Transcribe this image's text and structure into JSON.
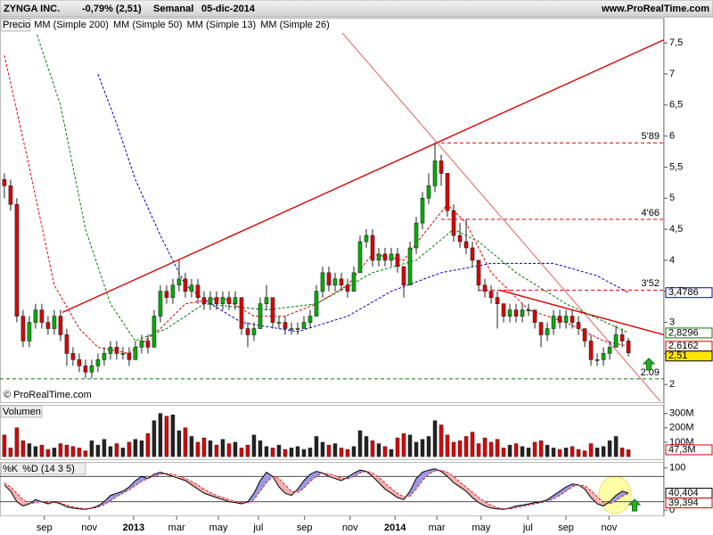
{
  "chart_data": [
    {
      "type": "candlestick",
      "title": "ZYNGA INC.",
      "change": "-0,79% (2,51)",
      "period": "Semanal",
      "date": "05-dic-2014",
      "source": "www.ProRealTime.com",
      "copyright": "© ProRealTime.com",
      "panel_label": "Precio",
      "up_color": "#00b000",
      "down_color": "#e00000",
      "xlim": [
        -0.7,
        105.7
      ],
      "ylim": [
        1.73,
        7.66
      ],
      "yticks": [
        {
          "value": 7.5,
          "label": "7,5"
        },
        7,
        {
          "value": 6.5,
          "label": "6,5"
        },
        6,
        {
          "value": 5.5,
          "label": "5,5"
        },
        5,
        {
          "value": 4.5,
          "label": "4,5"
        },
        4,
        {
          "value": 3.5,
          "label": "3,5"
        },
        3,
        {
          "value": 2.5,
          "label": "2,5"
        },
        2
      ],
      "candles": [
        [
          5.3,
          5.4,
          5.0,
          5.2
        ],
        [
          5.2,
          5.3,
          4.8,
          4.9
        ],
        [
          4.9,
          5.0,
          3.0,
          3.1
        ],
        [
          3.1,
          3.2,
          2.6,
          2.7
        ],
        [
          2.7,
          3.1,
          2.6,
          3.0
        ],
        [
          3.0,
          3.3,
          2.9,
          3.2
        ],
        [
          3.2,
          3.3,
          2.9,
          3.0
        ],
        [
          3.0,
          3.1,
          2.8,
          2.9
        ],
        [
          2.9,
          3.2,
          2.8,
          3.1
        ],
        [
          3.1,
          3.2,
          2.7,
          2.8
        ],
        [
          2.8,
          2.9,
          2.3,
          2.5
        ],
        [
          2.5,
          2.6,
          2.3,
          2.4
        ],
        [
          2.4,
          2.5,
          2.2,
          2.3
        ],
        [
          2.3,
          2.4,
          2.1,
          2.2
        ],
        [
          2.2,
          2.4,
          2.1,
          2.3
        ],
        [
          2.3,
          2.5,
          2.2,
          2.4
        ],
        [
          2.4,
          2.6,
          2.3,
          2.5
        ],
        [
          2.5,
          2.7,
          2.4,
          2.6
        ],
        [
          2.6,
          2.7,
          2.4,
          2.5
        ],
        [
          2.5,
          2.6,
          2.4,
          2.5
        ],
        [
          2.5,
          2.6,
          2.3,
          2.4
        ],
        [
          2.4,
          2.7,
          2.4,
          2.6
        ],
        [
          2.6,
          2.8,
          2.5,
          2.7
        ],
        [
          2.7,
          2.8,
          2.5,
          2.6
        ],
        [
          2.6,
          3.2,
          2.6,
          3.1
        ],
        [
          3.1,
          3.6,
          3.0,
          3.5
        ],
        [
          3.5,
          3.6,
          3.3,
          3.4
        ],
        [
          3.4,
          3.7,
          3.3,
          3.6
        ],
        [
          3.6,
          4.0,
          3.5,
          3.7
        ],
        [
          3.7,
          3.8,
          3.4,
          3.5
        ],
        [
          3.5,
          3.7,
          3.4,
          3.6
        ],
        [
          3.6,
          3.7,
          3.3,
          3.4
        ],
        [
          3.4,
          3.5,
          3.2,
          3.3
        ],
        [
          3.3,
          3.5,
          3.2,
          3.4
        ],
        [
          3.4,
          3.5,
          3.2,
          3.3
        ],
        [
          3.3,
          3.5,
          3.2,
          3.4
        ],
        [
          3.4,
          3.5,
          3.2,
          3.3
        ],
        [
          3.3,
          3.5,
          3.2,
          3.4
        ],
        [
          3.4,
          3.4,
          2.8,
          2.9
        ],
        [
          2.9,
          3.0,
          2.6,
          2.8
        ],
        [
          2.8,
          3.0,
          2.7,
          2.9
        ],
        [
          2.9,
          3.4,
          2.9,
          3.3
        ],
        [
          3.3,
          3.6,
          3.2,
          3.4
        ],
        [
          3.4,
          3.4,
          2.9,
          3.0
        ],
        [
          3.0,
          3.1,
          2.9,
          3.0
        ],
        [
          3.0,
          3.1,
          2.8,
          2.9
        ],
        [
          2.9,
          3.0,
          2.8,
          2.9
        ],
        [
          2.9,
          3.0,
          2.8,
          2.9
        ],
        [
          2.9,
          3.1,
          2.9,
          3.0
        ],
        [
          3.0,
          3.2,
          2.9,
          3.1
        ],
        [
          3.1,
          3.6,
          3.1,
          3.5
        ],
        [
          3.5,
          3.9,
          3.4,
          3.8
        ],
        [
          3.8,
          3.9,
          3.5,
          3.6
        ],
        [
          3.6,
          3.8,
          3.5,
          3.7
        ],
        [
          3.7,
          3.8,
          3.5,
          3.6
        ],
        [
          3.6,
          3.7,
          3.4,
          3.5
        ],
        [
          3.5,
          3.9,
          3.5,
          3.8
        ],
        [
          3.8,
          4.4,
          3.8,
          4.3
        ],
        [
          4.3,
          4.5,
          4.2,
          4.4
        ],
        [
          4.4,
          4.5,
          3.9,
          4.0
        ],
        [
          4.0,
          4.2,
          3.9,
          4.1
        ],
        [
          4.1,
          4.2,
          3.9,
          4.0
        ],
        [
          4.0,
          4.2,
          3.9,
          4.1
        ],
        [
          4.1,
          4.2,
          3.8,
          3.9
        ],
        [
          3.9,
          3.9,
          3.4,
          3.6
        ],
        [
          3.6,
          4.3,
          3.6,
          4.2
        ],
        [
          4.2,
          4.7,
          4.1,
          4.6
        ],
        [
          4.6,
          5.1,
          4.5,
          5.0
        ],
        [
          5.0,
          5.4,
          4.9,
          5.2
        ],
        [
          5.2,
          5.89,
          5.1,
          5.6
        ],
        [
          5.6,
          5.7,
          5.2,
          5.4
        ],
        [
          5.4,
          5.4,
          4.7,
          4.8
        ],
        [
          4.8,
          4.9,
          4.3,
          4.4
        ],
        [
          4.4,
          4.6,
          4.2,
          4.3
        ],
        [
          4.3,
          4.66,
          4.1,
          4.2
        ],
        [
          4.2,
          4.3,
          3.9,
          4.0
        ],
        [
          4.0,
          4.0,
          3.5,
          3.6
        ],
        [
          3.6,
          3.7,
          3.4,
          3.5
        ],
        [
          3.5,
          3.6,
          3.3,
          3.4
        ],
        [
          3.4,
          3.5,
          2.9,
          3.3
        ],
        [
          3.3,
          3.3,
          3.0,
          3.1
        ],
        [
          3.1,
          3.3,
          3.0,
          3.2
        ],
        [
          3.2,
          3.3,
          3.0,
          3.1
        ],
        [
          3.1,
          3.3,
          3.0,
          3.2
        ],
        [
          3.2,
          3.3,
          3.1,
          3.2
        ],
        [
          3.2,
          3.2,
          2.9,
          3.0
        ],
        [
          3.0,
          3.0,
          2.6,
          2.8
        ],
        [
          2.8,
          3.0,
          2.7,
          2.9
        ],
        [
          2.9,
          3.2,
          2.8,
          3.1
        ],
        [
          3.1,
          3.2,
          2.9,
          3.0
        ],
        [
          3.0,
          3.2,
          2.9,
          3.1
        ],
        [
          3.1,
          3.2,
          2.9,
          3.0
        ],
        [
          3.0,
          3.1,
          2.8,
          2.9
        ],
        [
          2.9,
          2.9,
          2.6,
          2.7
        ],
        [
          2.7,
          2.8,
          2.3,
          2.4
        ],
        [
          2.4,
          2.5,
          2.3,
          2.4
        ],
        [
          2.4,
          2.6,
          2.3,
          2.5
        ],
        [
          2.5,
          2.7,
          2.4,
          2.6
        ],
        [
          2.6,
          2.95,
          2.6,
          2.8
        ],
        [
          2.8,
          2.9,
          2.6,
          2.7
        ],
        [
          2.7,
          2.75,
          2.45,
          2.51
        ]
      ],
      "close_label": "2,51",
      "series": [
        {
          "name": "MM (Simple 200)",
          "color": "#000000",
          "x": [],
          "values": []
        },
        {
          "name": "MM (Simple 50)",
          "color": "#0000cc",
          "x": [
            15,
            18,
            21,
            25,
            29,
            33,
            38,
            47,
            55,
            62,
            70,
            78,
            88,
            95,
            100
          ],
          "values": [
            7.0,
            6.2,
            5.3,
            4.4,
            3.6,
            3.3,
            3.0,
            2.85,
            3.1,
            3.5,
            3.8,
            3.95,
            3.95,
            3.75,
            3.4786
          ],
          "last_label": "3,4786"
        },
        {
          "name": "MM (Simple 13)",
          "color": "#e00000",
          "x": [
            0,
            4,
            8,
            12,
            15,
            20,
            25,
            29,
            35,
            40,
            45,
            50,
            55,
            59,
            64,
            67,
            71,
            74,
            78,
            84,
            90,
            96,
            100
          ],
          "values": [
            7.3,
            5.5,
            3.6,
            2.9,
            2.6,
            2.5,
            2.9,
            3.3,
            3.4,
            3.1,
            3.1,
            3.3,
            3.6,
            4.1,
            4.0,
            4.4,
            4.9,
            4.6,
            3.8,
            3.2,
            3.0,
            2.7,
            2.6162
          ],
          "last_label": "2,6162"
        },
        {
          "name": "MM (Simple 26)",
          "color": "#008000",
          "x": [
            5,
            9,
            13,
            17,
            21,
            26,
            32,
            42,
            50,
            59,
            66,
            72,
            76,
            82,
            90,
            100
          ],
          "values": [
            7.7,
            6.5,
            4.5,
            3.3,
            2.7,
            2.9,
            3.3,
            3.2,
            3.3,
            3.8,
            4.0,
            4.5,
            4.3,
            3.8,
            3.3,
            2.8296
          ],
          "last_label": "2,8296"
        }
      ],
      "levels": [
        {
          "value": 5.89,
          "label": "5'89",
          "color": "#e00000",
          "x_start": 69
        },
        {
          "value": 4.66,
          "label": "4'66",
          "color": "#e00000",
          "x_start": 70
        },
        {
          "value": 3.52,
          "label": "3'52",
          "color": "#e00000",
          "x_start": 76
        },
        {
          "value": 2.09,
          "label": "2.09",
          "color": "#008000",
          "x_start": -0.7
        }
      ],
      "trendlines": [
        {
          "points": [
            [
              9.3,
              3.16
            ],
            [
              105.7,
              7.55
            ]
          ],
          "color": "#e00000",
          "width": 1.4
        },
        {
          "points": [
            [
              53.9,
              7.69
            ],
            [
              105.7,
              1.66
            ]
          ],
          "color": "#e06060",
          "width": 1
        },
        {
          "points": [
            [
              79.3,
              3.52
            ],
            [
              105.7,
              2.8
            ]
          ],
          "color": "#e00000",
          "width": 1.4
        }
      ]
    },
    {
      "type": "bar",
      "panel_label": "Volumen",
      "up_color": "#222222",
      "down_color": "#e00000",
      "xlim": [
        -0.7,
        105.7
      ],
      "ylim": [
        -18,
        341
      ],
      "yticks": [
        {
          "value": 100,
          "label": "100M"
        },
        {
          "value": 200,
          "label": "200M"
        },
        {
          "value": 300,
          "label": "300M"
        }
      ],
      "values": [
        150,
        60,
        200,
        110,
        90,
        70,
        80,
        50,
        60,
        90,
        80,
        70,
        60,
        40,
        110,
        80,
        120,
        70,
        90,
        60,
        100,
        120,
        110,
        160,
        250,
        300,
        280,
        290,
        180,
        200,
        140,
        100,
        130,
        110,
        80,
        120,
        90,
        100,
        60,
        80,
        150,
        110,
        70,
        60,
        80,
        50,
        60,
        70,
        50,
        60,
        140,
        100,
        80,
        90,
        60,
        50,
        70,
        180,
        140,
        110,
        90,
        70,
        50,
        130,
        160,
        150,
        100,
        120,
        140,
        250,
        220,
        150,
        100,
        110,
        140,
        170,
        90,
        130,
        100,
        120,
        60,
        80,
        90,
        70,
        60,
        100,
        110,
        80,
        60,
        50,
        60,
        70,
        50,
        40,
        90,
        60,
        70,
        110,
        140,
        60,
        47.3
      ],
      "last_label": "47,3M"
    },
    {
      "type": "line",
      "xlim": [
        -0.7,
        105.7
      ],
      "ylim": [
        -6,
        106
      ],
      "yticks": [
        0,
        100
      ],
      "levels": [
        20,
        80
      ],
      "fill_up": "#9a9ae6",
      "fill_down": "#f2b0b0",
      "xticks": [
        {
          "value": 6.4,
          "label": "sep"
        },
        {
          "value": 13.6,
          "label": "nov"
        },
        {
          "value": 20.7,
          "label": "2013"
        },
        {
          "value": 27.6,
          "label": "mar"
        },
        {
          "value": 34.3,
          "label": "may"
        },
        {
          "value": 40.7,
          "label": "jul"
        },
        {
          "value": 48.1,
          "label": "sep"
        },
        {
          "value": 55.4,
          "label": "nov"
        },
        {
          "value": 62.6,
          "label": "2014"
        },
        {
          "value": 69.3,
          "label": "mar"
        },
        {
          "value": 76.4,
          "label": "may"
        },
        {
          "value": 83.9,
          "label": "jul"
        },
        {
          "value": 90,
          "label": "sep"
        },
        {
          "value": 96.9,
          "label": "nov"
        }
      ],
      "series": [
        {
          "name": "%K",
          "color": "#000000",
          "values": [
            60,
            45,
            20,
            10,
            15,
            25,
            20,
            15,
            20,
            15,
            8,
            5,
            3,
            2,
            5,
            10,
            20,
            35,
            40,
            45,
            55,
            70,
            80,
            75,
            85,
            90,
            85,
            80,
            75,
            70,
            60,
            50,
            40,
            35,
            30,
            25,
            20,
            18,
            15,
            20,
            40,
            70,
            90,
            80,
            55,
            40,
            35,
            50,
            70,
            85,
            92,
            88,
            80,
            75,
            70,
            78,
            88,
            95,
            92,
            80,
            65,
            50,
            40,
            30,
            25,
            45,
            75,
            90,
            95,
            98,
            92,
            80,
            65,
            55,
            45,
            30,
            18,
            10,
            5,
            3,
            2,
            5,
            10,
            12,
            15,
            18,
            20,
            25,
            35,
            45,
            55,
            62,
            60,
            50,
            30,
            15,
            10,
            20,
            35,
            45,
            40.404
          ],
          "last_label": "40,404"
        },
        {
          "name": "%D (14 3 5)",
          "color": "#e00000",
          "values": [
            65,
            55,
            40,
            25,
            15,
            18,
            20,
            18,
            18,
            17,
            12,
            8,
            5,
            3,
            4,
            7,
            13,
            22,
            32,
            40,
            48,
            58,
            68,
            75,
            80,
            85,
            87,
            85,
            80,
            75,
            68,
            60,
            50,
            42,
            35,
            30,
            25,
            21,
            18,
            17,
            25,
            45,
            65,
            80,
            75,
            60,
            45,
            42,
            52,
            68,
            80,
            88,
            86,
            82,
            76,
            74,
            80,
            88,
            92,
            88,
            78,
            65,
            52,
            40,
            32,
            33,
            50,
            70,
            85,
            93,
            95,
            90,
            80,
            67,
            55,
            43,
            30,
            20,
            12,
            6,
            3,
            3,
            6,
            9,
            12,
            15,
            18,
            21,
            27,
            35,
            45,
            55,
            60,
            58,
            47,
            32,
            18,
            15,
            22,
            33,
            39.394
          ],
          "last_label": "39,394"
        }
      ]
    }
  ]
}
